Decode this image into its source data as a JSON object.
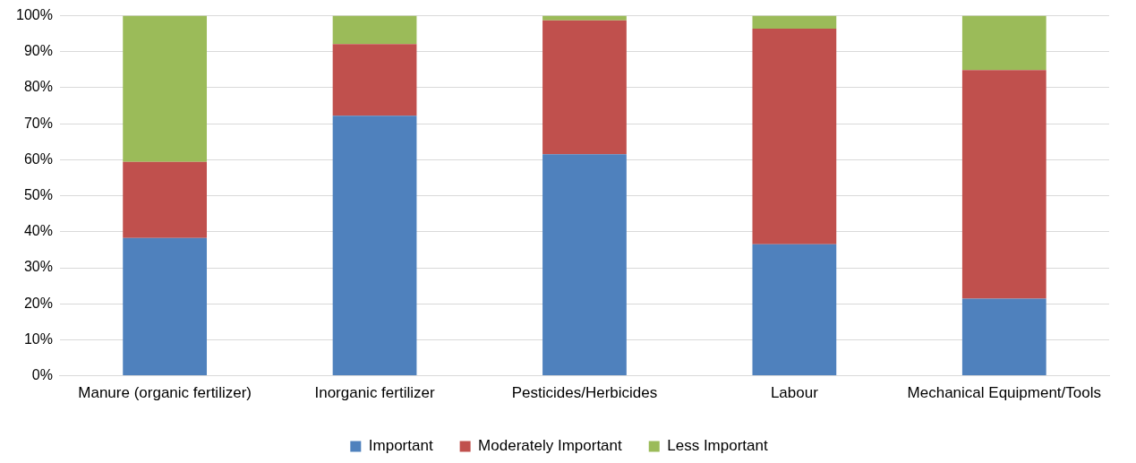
{
  "chart_data": {
    "type": "bar",
    "stacked": true,
    "categories": [
      "Manure (organic fertilizer)",
      "Inorganic fertilizer",
      "Pesticides/Herbicides",
      "Labour",
      "Mechanical Equipment/Tools"
    ],
    "series": [
      {
        "name": "Important",
        "color": "#4f81bd",
        "values": [
          38.3,
          72.2,
          61.5,
          36.5,
          21.4
        ]
      },
      {
        "name": "Moderately Important",
        "color": "#c0504d",
        "values": [
          21.1,
          19.9,
          37.2,
          59.9,
          63.5
        ]
      },
      {
        "name": "Less Important",
        "color": "#9bbb59",
        "values": [
          40.6,
          7.9,
          1.3,
          3.6,
          15.1
        ]
      }
    ],
    "ylim": [
      0,
      100
    ],
    "yticks": [
      {
        "value": 0,
        "label": "0%"
      },
      {
        "value": 10,
        "label": "10%"
      },
      {
        "value": 20,
        "label": "20%"
      },
      {
        "value": 30,
        "label": "30%"
      },
      {
        "value": 40,
        "label": "40%"
      },
      {
        "value": 50,
        "label": "50%"
      },
      {
        "value": 60,
        "label": "60%"
      },
      {
        "value": 70,
        "label": "70%"
      },
      {
        "value": 80,
        "label": "80%"
      },
      {
        "value": 90,
        "label": "90%"
      },
      {
        "value": 100,
        "label": "100%"
      }
    ],
    "grid": "y",
    "legend": "bottom"
  }
}
